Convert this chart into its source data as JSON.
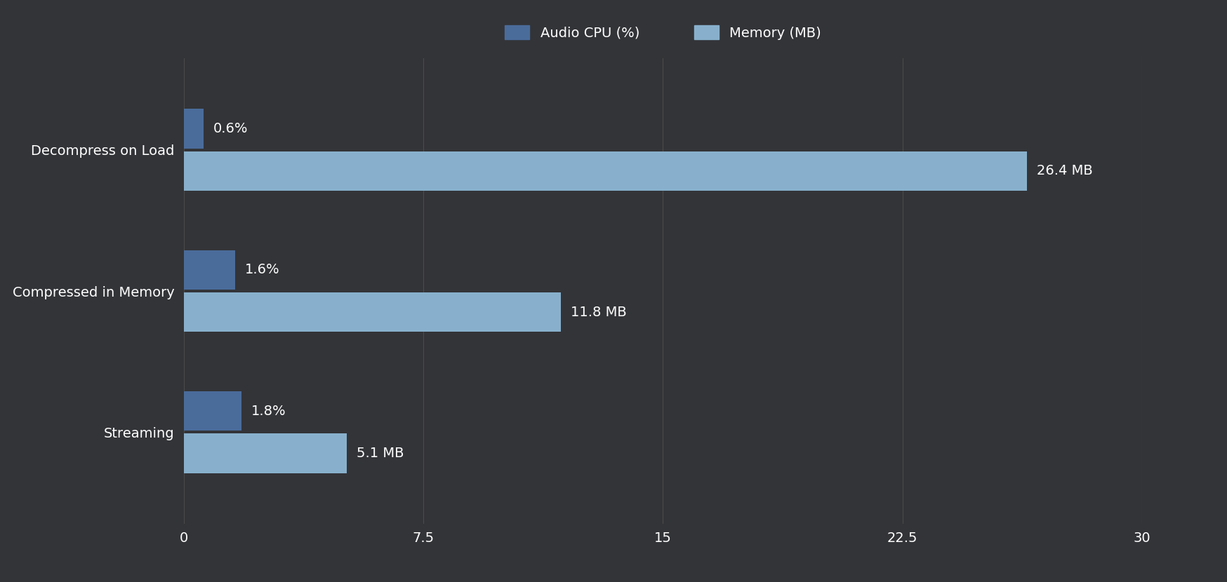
{
  "categories": [
    "Decompress on Load",
    "Compressed in Memory",
    "Streaming"
  ],
  "cpu_values": [
    0.6,
    1.6,
    1.8
  ],
  "memory_values": [
    26.4,
    11.8,
    5.1
  ],
  "cpu_labels": [
    "0.6%",
    "1.6%",
    "1.8%"
  ],
  "memory_labels": [
    "26.4 MB",
    "11.8 MB",
    "5.1 MB"
  ],
  "cpu_color": "#4a6c9b",
  "memory_color": "#88b0cc",
  "background_color": "#333438",
  "text_color": "#ffffff",
  "grid_color": "#4a4a4a",
  "xlim": [
    0,
    30
  ],
  "xticks": [
    0,
    7.5,
    15,
    22.5,
    30
  ],
  "legend_labels": [
    "Audio CPU (%)",
    "Memory (MB)"
  ],
  "cpu_bar_height": 0.28,
  "mem_bar_height": 0.28,
  "label_fontsize": 14,
  "tick_fontsize": 14,
  "legend_fontsize": 14,
  "ytick_fontsize": 14
}
